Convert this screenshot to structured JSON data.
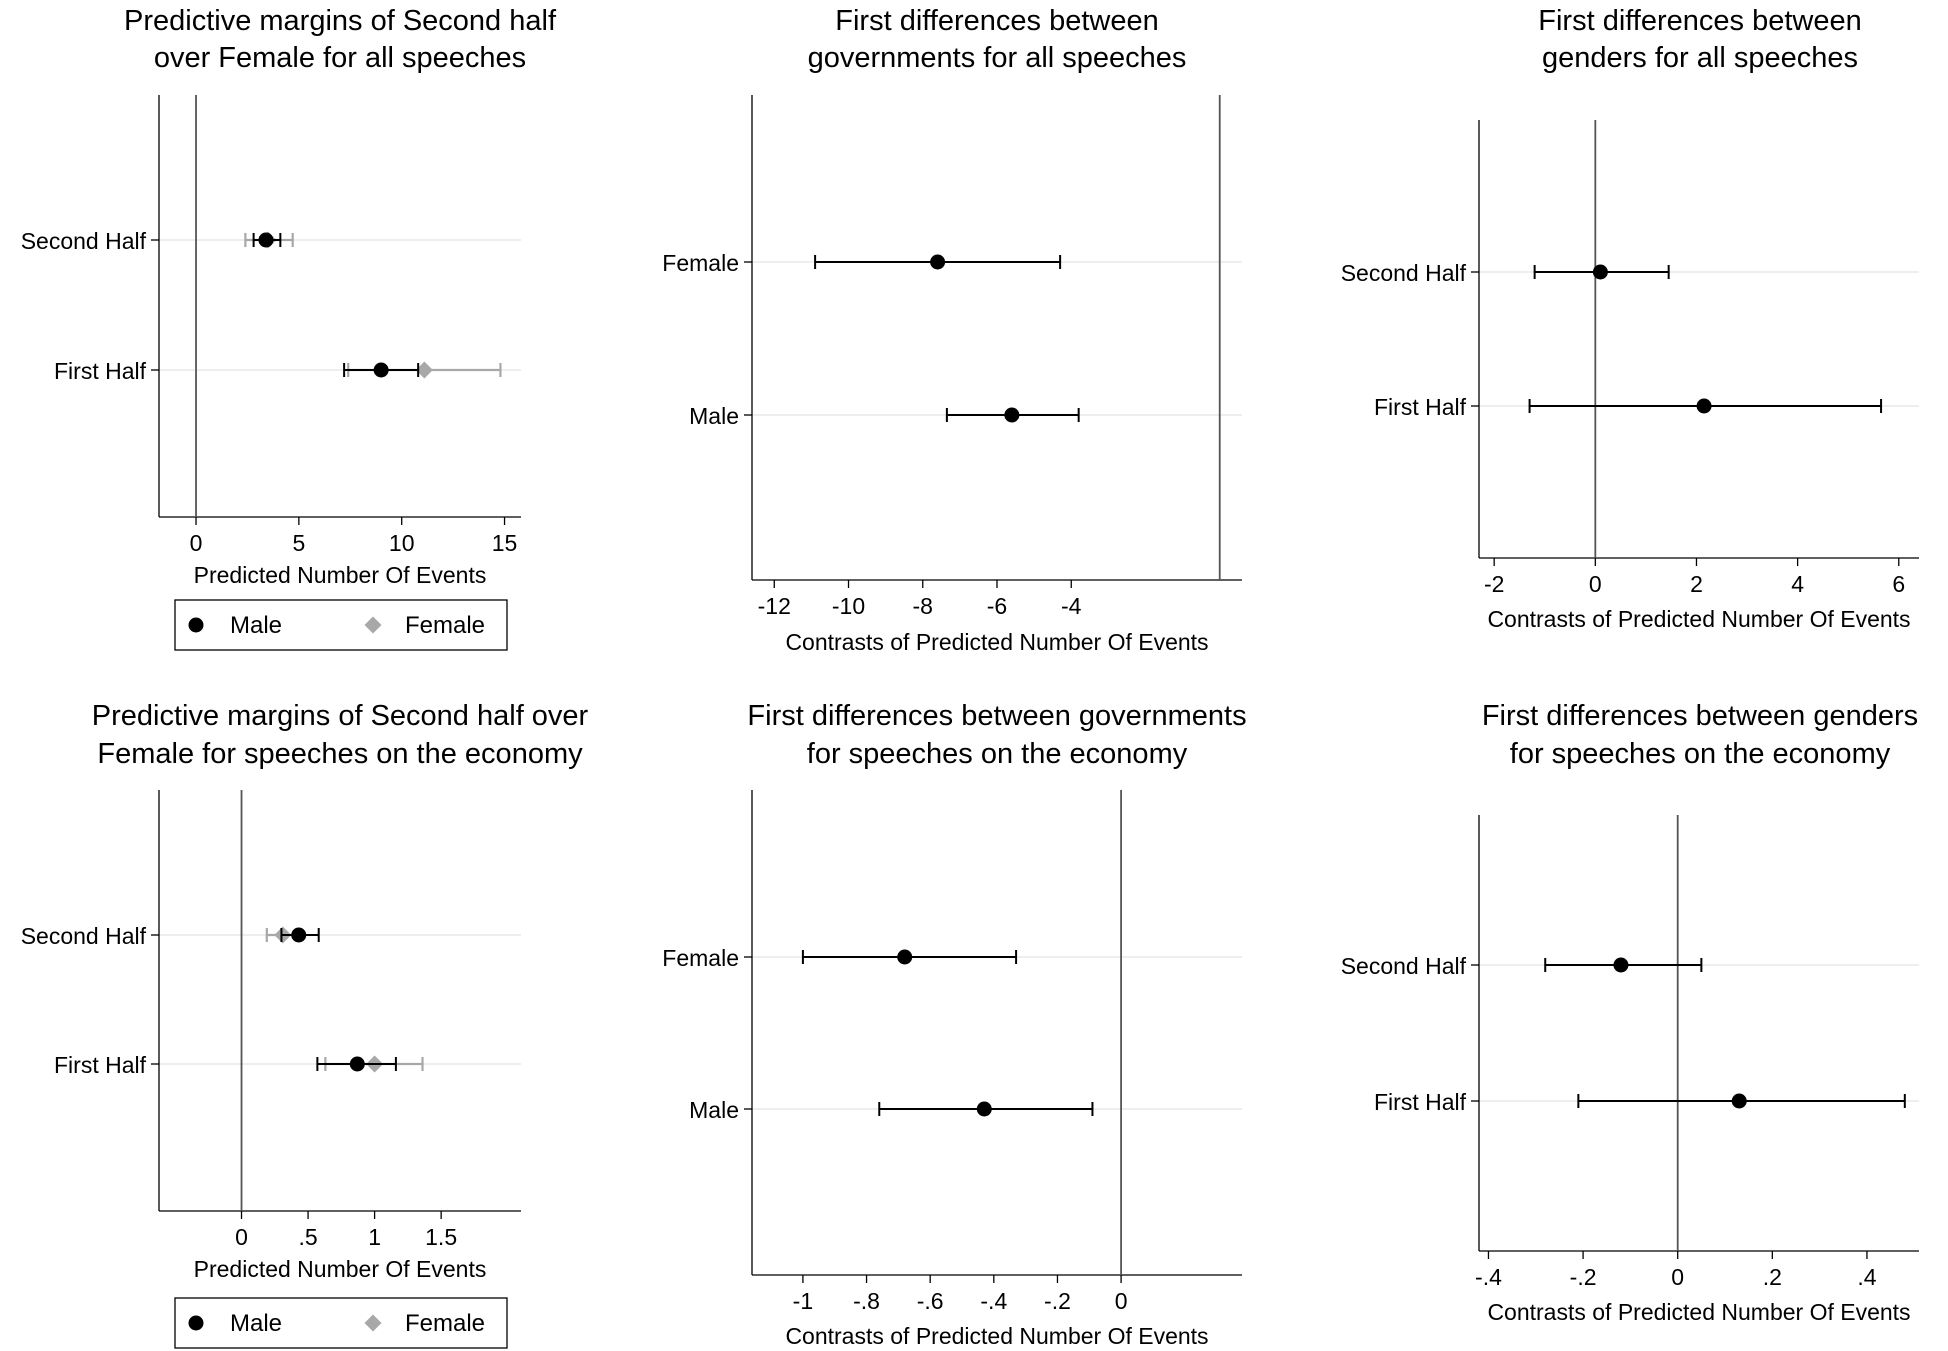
{
  "chart_data": [
    {
      "type": "coefplot",
      "title": [
        "Predictive margins of Second half",
        "over Female for all speeches"
      ],
      "xlabel": "Predicted Number Of Events",
      "xlim": [
        -1.8,
        15.8
      ],
      "ref_line": 0,
      "ticks": [
        {
          "v": 0,
          "label": "0"
        },
        {
          "v": 5,
          "label": "5"
        },
        {
          "v": 10,
          "label": "10"
        },
        {
          "v": 15,
          "label": "15"
        }
      ],
      "categories": [
        "Second Half",
        "First Half"
      ],
      "series": [
        {
          "name": "Female",
          "marker": "diamond",
          "color": "#a8a8a8",
          "points": [
            {
              "category": "Second Half",
              "value": 3.5,
              "lo": 2.4,
              "hi": 4.7
            },
            {
              "category": "First Half",
              "value": 11.1,
              "lo": 7.4,
              "hi": 14.8
            }
          ]
        },
        {
          "name": "Male",
          "marker": "circle",
          "color": "#000000",
          "points": [
            {
              "category": "Second Half",
              "value": 3.4,
              "lo": 2.8,
              "hi": 4.1
            },
            {
              "category": "First Half",
              "value": 9.0,
              "lo": 7.2,
              "hi": 10.8
            }
          ]
        }
      ],
      "legend": [
        {
          "label": "Male",
          "marker": "circle",
          "color": "#000000"
        },
        {
          "label": "Female",
          "marker": "diamond",
          "color": "#a8a8a8"
        }
      ]
    },
    {
      "type": "coefplot",
      "title": [
        "First differences between",
        "governments for all speeches"
      ],
      "xlabel": "Contrasts of Predicted Number Of Events",
      "xlim": [
        -12.6,
        0.6
      ],
      "ref_line": 0,
      "ticks": [
        {
          "v": -12,
          "label": "-12"
        },
        {
          "v": -10,
          "label": "-10"
        },
        {
          "v": -8,
          "label": "-8"
        },
        {
          "v": -6,
          "label": "-6"
        },
        {
          "v": -4,
          "label": "-4"
        }
      ],
      "categories": [
        "Female",
        "Male"
      ],
      "series": [
        {
          "name": "Contrast",
          "marker": "circle",
          "color": "#000000",
          "points": [
            {
              "category": "Female",
              "value": -7.6,
              "lo": -10.9,
              "hi": -4.3
            },
            {
              "category": "Male",
              "value": -5.6,
              "lo": -7.35,
              "hi": -3.8
            }
          ]
        }
      ]
    },
    {
      "type": "coefplot",
      "title": [
        "First differences between",
        "genders for all speeches"
      ],
      "xlabel": "Contrasts of Predicted Number Of Events",
      "xlim": [
        -2.3,
        6.4
      ],
      "ref_line": 0,
      "ticks": [
        {
          "v": -2,
          "label": "-2"
        },
        {
          "v": 0,
          "label": "0"
        },
        {
          "v": 2,
          "label": "2"
        },
        {
          "v": 4,
          "label": "4"
        },
        {
          "v": 6,
          "label": "6"
        }
      ],
      "categories": [
        "Second Half",
        "First Half"
      ],
      "series": [
        {
          "name": "Contrast",
          "marker": "circle",
          "color": "#000000",
          "points": [
            {
              "category": "Second Half",
              "value": 0.1,
              "lo": -1.2,
              "hi": 1.45
            },
            {
              "category": "First Half",
              "value": 2.15,
              "lo": -1.3,
              "hi": 5.65
            }
          ]
        }
      ]
    },
    {
      "type": "coefplot",
      "title": [
        "Predictive margins of Second half over",
        "Female for speeches on the economy"
      ],
      "xlabel": "Predicted Number Of Events",
      "xlim": [
        -0.62,
        2.1
      ],
      "ref_line": 0,
      "ticks": [
        {
          "v": 0,
          "label": "0"
        },
        {
          "v": 0.5,
          "label": ".5"
        },
        {
          "v": 1,
          "label": "1"
        },
        {
          "v": 1.5,
          "label": "1.5"
        }
      ],
      "categories": [
        "Second Half",
        "First Half"
      ],
      "series": [
        {
          "name": "Female",
          "marker": "diamond",
          "color": "#a8a8a8",
          "points": [
            {
              "category": "Second Half",
              "value": 0.31,
              "lo": 0.19,
              "hi": 0.43
            },
            {
              "category": "First Half",
              "value": 1.0,
              "lo": 0.63,
              "hi": 1.36
            }
          ]
        },
        {
          "name": "Male",
          "marker": "circle",
          "color": "#000000",
          "points": [
            {
              "category": "Second Half",
              "value": 0.43,
              "lo": 0.3,
              "hi": 0.58
            },
            {
              "category": "First Half",
              "value": 0.87,
              "lo": 0.57,
              "hi": 1.16
            }
          ]
        }
      ],
      "legend": [
        {
          "label": "Male",
          "marker": "circle",
          "color": "#000000"
        },
        {
          "label": "Female",
          "marker": "diamond",
          "color": "#a8a8a8"
        }
      ]
    },
    {
      "type": "coefplot",
      "title": [
        "First differences between governments",
        "for speeches on the economy"
      ],
      "xlabel": "Contrasts of Predicted Number Of Events",
      "xlim": [
        -1.16,
        0.38
      ],
      "ref_line": 0,
      "ticks": [
        {
          "v": -1,
          "label": "-1"
        },
        {
          "v": -0.8,
          "label": "-.8"
        },
        {
          "v": -0.6,
          "label": "-.6"
        },
        {
          "v": -0.4,
          "label": "-.4"
        },
        {
          "v": -0.2,
          "label": "-.2"
        },
        {
          "v": 0,
          "label": "0"
        }
      ],
      "categories": [
        "Female",
        "Male"
      ],
      "series": [
        {
          "name": "Contrast",
          "marker": "circle",
          "color": "#000000",
          "points": [
            {
              "category": "Female",
              "value": -0.68,
              "lo": -1.0,
              "hi": -0.33
            },
            {
              "category": "Male",
              "value": -0.43,
              "lo": -0.76,
              "hi": -0.09
            }
          ]
        }
      ]
    },
    {
      "type": "coefplot",
      "title": [
        "First differences between genders",
        "for speeches on the economy"
      ],
      "xlabel": "Contrasts of Predicted Number Of Events",
      "xlim": [
        -0.42,
        0.51
      ],
      "ref_line": 0,
      "ticks": [
        {
          "v": -0.4,
          "label": "-.4"
        },
        {
          "v": -0.2,
          "label": "-.2"
        },
        {
          "v": 0,
          "label": "0"
        },
        {
          "v": 0.2,
          "label": ".2"
        },
        {
          "v": 0.4,
          "label": ".4"
        }
      ],
      "categories": [
        "Second Half",
        "First Half"
      ],
      "series": [
        {
          "name": "Contrast",
          "marker": "circle",
          "color": "#000000",
          "points": [
            {
              "category": "Second Half",
              "value": -0.12,
              "lo": -0.28,
              "hi": 0.05
            },
            {
              "category": "First Half",
              "value": 0.13,
              "lo": -0.21,
              "hi": 0.48
            }
          ]
        }
      ]
    }
  ]
}
